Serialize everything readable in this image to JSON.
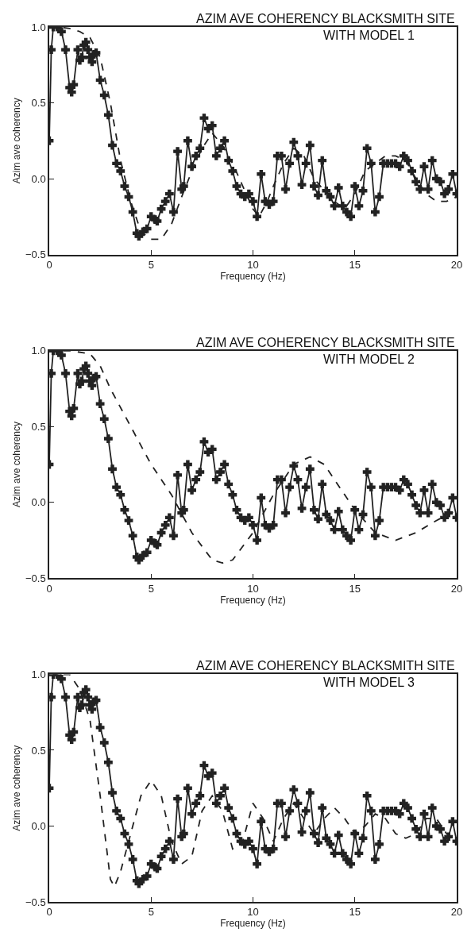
{
  "chart_data": [
    {
      "type": "line",
      "title": "AZIM AVE COHERENCY BLACKSMITH SITE",
      "subtitle": "WITH MODEL 1",
      "xlabel": "Frequency (Hz)",
      "ylabel": "Azim ave coherency",
      "xlim": [
        0,
        20
      ],
      "xticks": [
        0,
        5,
        10,
        15,
        20
      ],
      "ylim": [
        -0.5,
        1.0
      ],
      "yticks": [
        {
          "value": -0.5,
          "label": "−0.5"
        },
        {
          "value": 0,
          "label": "0.0"
        },
        {
          "value": 0.5,
          "label": "0.5"
        },
        {
          "value": 1,
          "label": "1.0"
        }
      ],
      "series": [
        {
          "color": "#222222",
          "marker": "cross",
          "line_style": "solid",
          "x": [
            0.0,
            0.1,
            0.2,
            0.4,
            0.6,
            0.8,
            1.0,
            1.1,
            1.2,
            1.4,
            1.5,
            1.6,
            1.7,
            1.8,
            1.9,
            2.0,
            2.1,
            2.2,
            2.3,
            2.5,
            2.7,
            2.9,
            3.1,
            3.3,
            3.5,
            3.7,
            3.9,
            4.1,
            4.3,
            4.4,
            4.6,
            4.8,
            5.0,
            5.2,
            5.3,
            5.5,
            5.7,
            5.9,
            6.1,
            6.3,
            6.5,
            6.6,
            6.8,
            7.0,
            7.2,
            7.4,
            7.6,
            7.8,
            8.0,
            8.2,
            8.4,
            8.6,
            8.8,
            9.0,
            9.2,
            9.4,
            9.6,
            9.8,
            10.0,
            10.2,
            10.4,
            10.6,
            10.8,
            11.0,
            11.2,
            11.4,
            11.6,
            11.8,
            12.0,
            12.2,
            12.4,
            12.6,
            12.8,
            13.0,
            13.2,
            13.4,
            13.6,
            13.8,
            14.0,
            14.2,
            14.4,
            14.6,
            14.8,
            15.0,
            15.2,
            15.4,
            15.6,
            15.8,
            16.0,
            16.2,
            16.4,
            16.6,
            16.8,
            17.0,
            17.2,
            17.4,
            17.6,
            17.8,
            18.0,
            18.2,
            18.4,
            18.6,
            18.8,
            19.0,
            19.2,
            19.4,
            19.6,
            19.8,
            20.0
          ],
          "values": [
            0.25,
            0.85,
            1.0,
            1.0,
            0.97,
            0.85,
            0.6,
            0.57,
            0.62,
            0.85,
            0.78,
            0.8,
            0.88,
            0.9,
            0.85,
            0.8,
            0.77,
            0.82,
            0.83,
            0.65,
            0.55,
            0.42,
            0.22,
            0.1,
            0.05,
            -0.05,
            -0.12,
            -0.22,
            -0.36,
            -0.38,
            -0.35,
            -0.33,
            -0.25,
            -0.27,
            -0.28,
            -0.2,
            -0.15,
            -0.1,
            -0.22,
            0.18,
            -0.07,
            -0.05,
            0.25,
            0.08,
            0.15,
            0.2,
            0.4,
            0.33,
            0.35,
            0.15,
            0.2,
            0.25,
            0.12,
            0.05,
            -0.05,
            -0.1,
            -0.12,
            -0.1,
            -0.15,
            -0.25,
            0.03,
            -0.15,
            -0.17,
            -0.15,
            0.15,
            0.15,
            -0.07,
            0.1,
            0.24,
            0.15,
            -0.04,
            0.1,
            0.22,
            -0.05,
            -0.11,
            0.12,
            -0.08,
            -0.12,
            -0.18,
            -0.06,
            -0.18,
            -0.22,
            -0.25,
            -0.05,
            -0.18,
            -0.08,
            0.2,
            0.1,
            -0.22,
            -0.12,
            0.1,
            0.1,
            0.1,
            0.1,
            0.08,
            0.15,
            0.12,
            0.05,
            -0.02,
            -0.07,
            0.08,
            -0.07,
            0.12,
            0.0,
            -0.02,
            -0.1,
            -0.07,
            0.03,
            -0.1
          ]
        },
        {
          "color": "#222222",
          "marker": "none",
          "line_style": "dashed",
          "x": [
            0,
            0.5,
            1.0,
            1.5,
            2.0,
            2.5,
            3.0,
            3.5,
            4.0,
            4.5,
            5.0,
            5.5,
            6.0,
            6.5,
            7.0,
            7.5,
            8.0,
            8.5,
            9.0,
            9.5,
            10.0,
            10.3,
            10.7,
            11.0,
            11.5,
            12.0,
            12.5,
            13.0,
            13.5,
            14.0,
            14.5,
            15.0,
            15.5,
            16.0,
            16.5,
            17.0,
            17.5,
            18.0,
            18.5,
            19.0,
            19.5,
            20.0
          ],
          "values": [
            1.0,
            1.0,
            0.99,
            0.97,
            0.93,
            0.8,
            0.5,
            0.12,
            -0.15,
            -0.35,
            -0.4,
            -0.4,
            -0.3,
            -0.12,
            0.05,
            0.2,
            0.3,
            0.22,
            0.1,
            -0.05,
            -0.2,
            -0.25,
            -0.15,
            -0.05,
            0.1,
            0.2,
            0.15,
            0.0,
            -0.08,
            -0.15,
            -0.2,
            -0.1,
            0.05,
            0.1,
            0.15,
            0.15,
            0.12,
            0.0,
            -0.1,
            -0.15,
            -0.15,
            -0.12
          ]
        }
      ]
    },
    {
      "type": "line",
      "title": "AZIM AVE COHERENCY BLACKSMITH SITE",
      "subtitle": "WITH MODEL 2",
      "xlabel": "Frequency (Hz)",
      "ylabel": "Azim ave coherency",
      "xlim": [
        0,
        20
      ],
      "xticks": [
        0,
        5,
        10,
        15,
        20
      ],
      "ylim": [
        -0.5,
        1.0
      ],
      "yticks": [
        {
          "value": -0.5,
          "label": "−0.5"
        },
        {
          "value": 0,
          "label": "0.0"
        },
        {
          "value": 0.5,
          "label": "0.5"
        },
        {
          "value": 1,
          "label": "1.0"
        }
      ],
      "series": [
        {
          "color": "#222222",
          "marker": "cross",
          "line_style": "solid",
          "x": [
            0.0,
            0.1,
            0.2,
            0.4,
            0.6,
            0.8,
            1.0,
            1.1,
            1.2,
            1.4,
            1.5,
            1.6,
            1.7,
            1.8,
            1.9,
            2.0,
            2.1,
            2.2,
            2.3,
            2.5,
            2.7,
            2.9,
            3.1,
            3.3,
            3.5,
            3.7,
            3.9,
            4.1,
            4.3,
            4.4,
            4.6,
            4.8,
            5.0,
            5.2,
            5.3,
            5.5,
            5.7,
            5.9,
            6.1,
            6.3,
            6.5,
            6.6,
            6.8,
            7.0,
            7.2,
            7.4,
            7.6,
            7.8,
            8.0,
            8.2,
            8.4,
            8.6,
            8.8,
            9.0,
            9.2,
            9.4,
            9.6,
            9.8,
            10.0,
            10.2,
            10.4,
            10.6,
            10.8,
            11.0,
            11.2,
            11.4,
            11.6,
            11.8,
            12.0,
            12.2,
            12.4,
            12.6,
            12.8,
            13.0,
            13.2,
            13.4,
            13.6,
            13.8,
            14.0,
            14.2,
            14.4,
            14.6,
            14.8,
            15.0,
            15.2,
            15.4,
            15.6,
            15.8,
            16.0,
            16.2,
            16.4,
            16.6,
            16.8,
            17.0,
            17.2,
            17.4,
            17.6,
            17.8,
            18.0,
            18.2,
            18.4,
            18.6,
            18.8,
            19.0,
            19.2,
            19.4,
            19.6,
            19.8,
            20.0
          ],
          "values": [
            0.25,
            0.85,
            1.0,
            1.0,
            0.97,
            0.85,
            0.6,
            0.57,
            0.62,
            0.85,
            0.78,
            0.8,
            0.88,
            0.9,
            0.85,
            0.8,
            0.77,
            0.82,
            0.83,
            0.65,
            0.55,
            0.42,
            0.22,
            0.1,
            0.05,
            -0.05,
            -0.12,
            -0.22,
            -0.36,
            -0.38,
            -0.35,
            -0.33,
            -0.25,
            -0.27,
            -0.28,
            -0.2,
            -0.15,
            -0.1,
            -0.22,
            0.18,
            -0.07,
            -0.05,
            0.25,
            0.08,
            0.15,
            0.2,
            0.4,
            0.33,
            0.35,
            0.15,
            0.2,
            0.25,
            0.12,
            0.05,
            -0.05,
            -0.1,
            -0.12,
            -0.1,
            -0.15,
            -0.25,
            0.03,
            -0.15,
            -0.17,
            -0.15,
            0.15,
            0.15,
            -0.07,
            0.1,
            0.24,
            0.15,
            -0.04,
            0.1,
            0.22,
            -0.05,
            -0.11,
            0.12,
            -0.08,
            -0.12,
            -0.18,
            -0.06,
            -0.18,
            -0.22,
            -0.25,
            -0.05,
            -0.18,
            -0.08,
            0.2,
            0.1,
            -0.22,
            -0.12,
            0.1,
            0.1,
            0.1,
            0.1,
            0.08,
            0.15,
            0.12,
            0.05,
            -0.02,
            -0.07,
            0.08,
            -0.07,
            0.12,
            0.0,
            -0.02,
            -0.1,
            -0.07,
            0.03,
            -0.1
          ]
        },
        {
          "color": "#222222",
          "marker": "none",
          "line_style": "dashed",
          "x": [
            0,
            1,
            2,
            2.5,
            3,
            4,
            5,
            6,
            7,
            8,
            8.5,
            9,
            10,
            11,
            12,
            12.8,
            13.5,
            14,
            15,
            16,
            17,
            18,
            19,
            20
          ],
          "values": [
            1.0,
            1.0,
            0.98,
            0.9,
            0.75,
            0.5,
            0.25,
            0.05,
            -0.2,
            -0.38,
            -0.4,
            -0.38,
            -0.2,
            0.05,
            0.25,
            0.3,
            0.25,
            0.15,
            -0.05,
            -0.2,
            -0.25,
            -0.2,
            -0.12,
            -0.05
          ]
        }
      ]
    },
    {
      "type": "line",
      "title": "AZIM AVE COHERENCY BLACKSMITH SITE",
      "subtitle": "WITH MODEL 3",
      "xlabel": "Frequency (Hz)",
      "ylabel": "Azim ave coherency",
      "xlim": [
        0,
        20
      ],
      "xticks": [
        0,
        5,
        10,
        15,
        20
      ],
      "ylim": [
        -0.5,
        1.0
      ],
      "yticks": [
        {
          "value": -0.5,
          "label": "−0.5"
        },
        {
          "value": 0,
          "label": "0.0"
        },
        {
          "value": 0.5,
          "label": "0.5"
        },
        {
          "value": 1,
          "label": "1.0"
        }
      ],
      "series": [
        {
          "color": "#222222",
          "marker": "cross",
          "line_style": "solid",
          "x": [
            0.0,
            0.1,
            0.2,
            0.4,
            0.6,
            0.8,
            1.0,
            1.1,
            1.2,
            1.4,
            1.5,
            1.6,
            1.7,
            1.8,
            1.9,
            2.0,
            2.1,
            2.2,
            2.3,
            2.5,
            2.7,
            2.9,
            3.1,
            3.3,
            3.5,
            3.7,
            3.9,
            4.1,
            4.3,
            4.4,
            4.6,
            4.8,
            5.0,
            5.2,
            5.3,
            5.5,
            5.7,
            5.9,
            6.1,
            6.3,
            6.5,
            6.6,
            6.8,
            7.0,
            7.2,
            7.4,
            7.6,
            7.8,
            8.0,
            8.2,
            8.4,
            8.6,
            8.8,
            9.0,
            9.2,
            9.4,
            9.6,
            9.8,
            10.0,
            10.2,
            10.4,
            10.6,
            10.8,
            11.0,
            11.2,
            11.4,
            11.6,
            11.8,
            12.0,
            12.2,
            12.4,
            12.6,
            12.8,
            13.0,
            13.2,
            13.4,
            13.6,
            13.8,
            14.0,
            14.2,
            14.4,
            14.6,
            14.8,
            15.0,
            15.2,
            15.4,
            15.6,
            15.8,
            16.0,
            16.2,
            16.4,
            16.6,
            16.8,
            17.0,
            17.2,
            17.4,
            17.6,
            17.8,
            18.0,
            18.2,
            18.4,
            18.6,
            18.8,
            19.0,
            19.2,
            19.4,
            19.6,
            19.8,
            20.0
          ],
          "values": [
            0.25,
            0.85,
            1.0,
            1.0,
            0.97,
            0.85,
            0.6,
            0.57,
            0.62,
            0.85,
            0.78,
            0.8,
            0.88,
            0.9,
            0.85,
            0.8,
            0.77,
            0.82,
            0.83,
            0.65,
            0.55,
            0.42,
            0.22,
            0.1,
            0.05,
            -0.05,
            -0.12,
            -0.22,
            -0.36,
            -0.38,
            -0.35,
            -0.33,
            -0.25,
            -0.27,
            -0.28,
            -0.2,
            -0.15,
            -0.1,
            -0.22,
            0.18,
            -0.07,
            -0.05,
            0.25,
            0.08,
            0.15,
            0.2,
            0.4,
            0.33,
            0.35,
            0.15,
            0.2,
            0.25,
            0.12,
            0.05,
            -0.05,
            -0.1,
            -0.12,
            -0.1,
            -0.15,
            -0.25,
            0.03,
            -0.15,
            -0.17,
            -0.15,
            0.15,
            0.15,
            -0.07,
            0.1,
            0.24,
            0.15,
            -0.04,
            0.1,
            0.22,
            -0.05,
            -0.11,
            0.12,
            -0.08,
            -0.12,
            -0.18,
            -0.06,
            -0.18,
            -0.22,
            -0.25,
            -0.05,
            -0.18,
            -0.08,
            0.2,
            0.1,
            -0.22,
            -0.12,
            0.1,
            0.1,
            0.1,
            0.1,
            0.08,
            0.15,
            0.12,
            0.05,
            -0.02,
            -0.07,
            0.08,
            -0.07,
            0.12,
            0.0,
            -0.02,
            -0.1,
            -0.07,
            0.03,
            -0.1
          ]
        },
        {
          "color": "#222222",
          "marker": "none",
          "line_style": "dashed",
          "x": [
            0,
            0.5,
            1.0,
            1.5,
            2.0,
            2.5,
            3.0,
            3.2,
            3.5,
            4.0,
            4.5,
            5.0,
            5.5,
            6.0,
            6.5,
            7.0,
            7.5,
            8.0,
            8.5,
            9.0,
            9.5,
            10.0,
            10.5,
            11.0,
            11.5,
            12.0,
            12.5,
            13.0,
            13.5,
            14.0,
            14.5,
            15.0,
            15.5,
            16.0,
            16.5,
            17.0,
            17.5,
            18.0,
            18.5,
            19.0,
            19.5,
            20.0
          ],
          "values": [
            1.0,
            1.0,
            1.0,
            0.9,
            0.7,
            0.2,
            -0.35,
            -0.4,
            -0.3,
            -0.05,
            0.2,
            0.3,
            0.2,
            -0.1,
            -0.25,
            -0.2,
            0.1,
            0.2,
            0.1,
            -0.15,
            -0.1,
            0.15,
            0.05,
            -0.1,
            0.05,
            0.15,
            0.05,
            -0.05,
            0.05,
            0.12,
            0.05,
            -0.05,
            0.0,
            0.08,
            0.05,
            -0.05,
            -0.08,
            -0.05,
            0.05,
            0.05,
            -0.05,
            -0.1
          ]
        }
      ]
    }
  ]
}
